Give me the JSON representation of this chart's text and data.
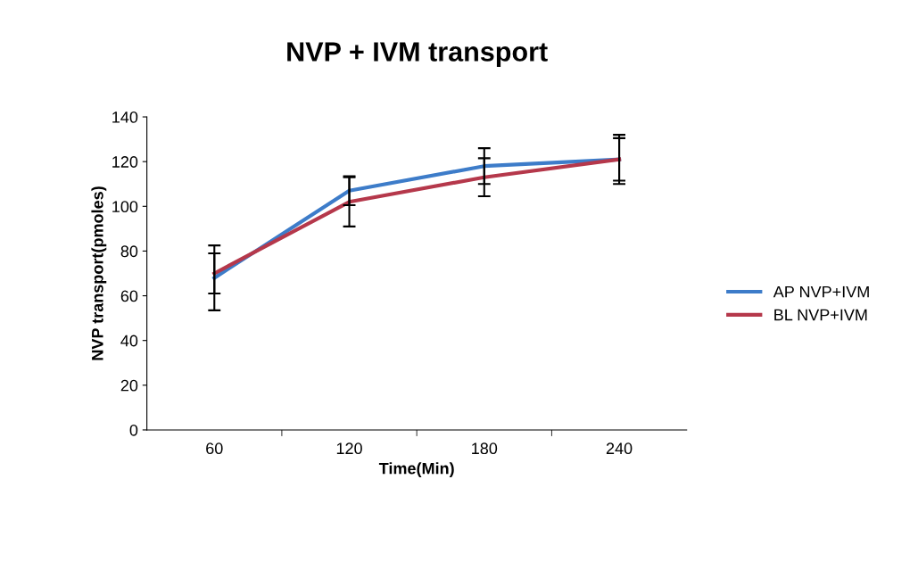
{
  "chart_data": {
    "type": "line",
    "title": "NVP + IVM transport",
    "xlabel": "Time(Min)",
    "ylabel": "NVP transport(pmoles)",
    "categories": [
      "60",
      "120",
      "180",
      "240"
    ],
    "series": [
      {
        "name": "AP NVP+IVM",
        "color": "#3d7cc9",
        "values": [
          68,
          107,
          118,
          121
        ],
        "errors": [
          14.5,
          6.5,
          8,
          11
        ]
      },
      {
        "name": "BL NVP+IVM",
        "color": "#b5384b",
        "values": [
          70,
          102,
          113,
          121
        ],
        "errors": [
          9,
          11,
          8.5,
          9.5
        ]
      }
    ],
    "ylim": [
      0,
      140
    ],
    "yticks": [
      0,
      20,
      40,
      60,
      80,
      100,
      120,
      140
    ],
    "grid": false,
    "legend": "right",
    "marker": "none",
    "line_style": "solid"
  }
}
